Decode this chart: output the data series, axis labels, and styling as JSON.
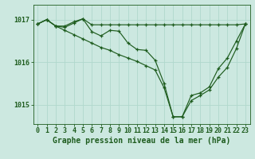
{
  "bg_color": "#cce8e0",
  "line_color": "#1e5c1e",
  "grid_color": "#b0d8cc",
  "title": "Graphe pression niveau de la mer (hPa)",
  "tick_fontsize": 6,
  "title_fontsize": 7,
  "ylim": [
    1014.55,
    1017.35
  ],
  "yticks": [
    1015,
    1016,
    1017
  ],
  "xlim": [
    -0.5,
    23.5
  ],
  "xticks": [
    0,
    1,
    2,
    3,
    4,
    5,
    6,
    7,
    8,
    9,
    10,
    11,
    12,
    13,
    14,
    15,
    16,
    17,
    18,
    19,
    20,
    21,
    22,
    23
  ],
  "series1": [
    1016.9,
    1017.0,
    1016.85,
    1016.85,
    1016.95,
    1017.02,
    1016.88,
    1016.88,
    1016.88,
    1016.88,
    1016.88,
    1016.88,
    1016.88,
    1016.88,
    1016.88,
    1016.88,
    1016.88,
    1016.88,
    1016.88,
    1016.88,
    1016.88,
    1016.88,
    1016.88,
    1016.9
  ],
  "series2": [
    1016.9,
    1017.0,
    1016.85,
    1016.82,
    1016.92,
    1017.02,
    1016.72,
    1016.62,
    1016.75,
    1016.73,
    1016.45,
    1016.3,
    1016.28,
    1016.05,
    1015.5,
    1014.72,
    1014.72,
    1015.22,
    1015.28,
    1015.42,
    1015.85,
    1016.1,
    1016.5,
    1016.9
  ],
  "series3": [
    1016.9,
    1017.0,
    1016.85,
    1016.75,
    1016.65,
    1016.55,
    1016.45,
    1016.35,
    1016.28,
    1016.18,
    1016.1,
    1016.02,
    1015.92,
    1015.82,
    1015.4,
    1014.72,
    1014.72,
    1015.1,
    1015.22,
    1015.35,
    1015.65,
    1015.88,
    1016.32,
    1016.9
  ]
}
